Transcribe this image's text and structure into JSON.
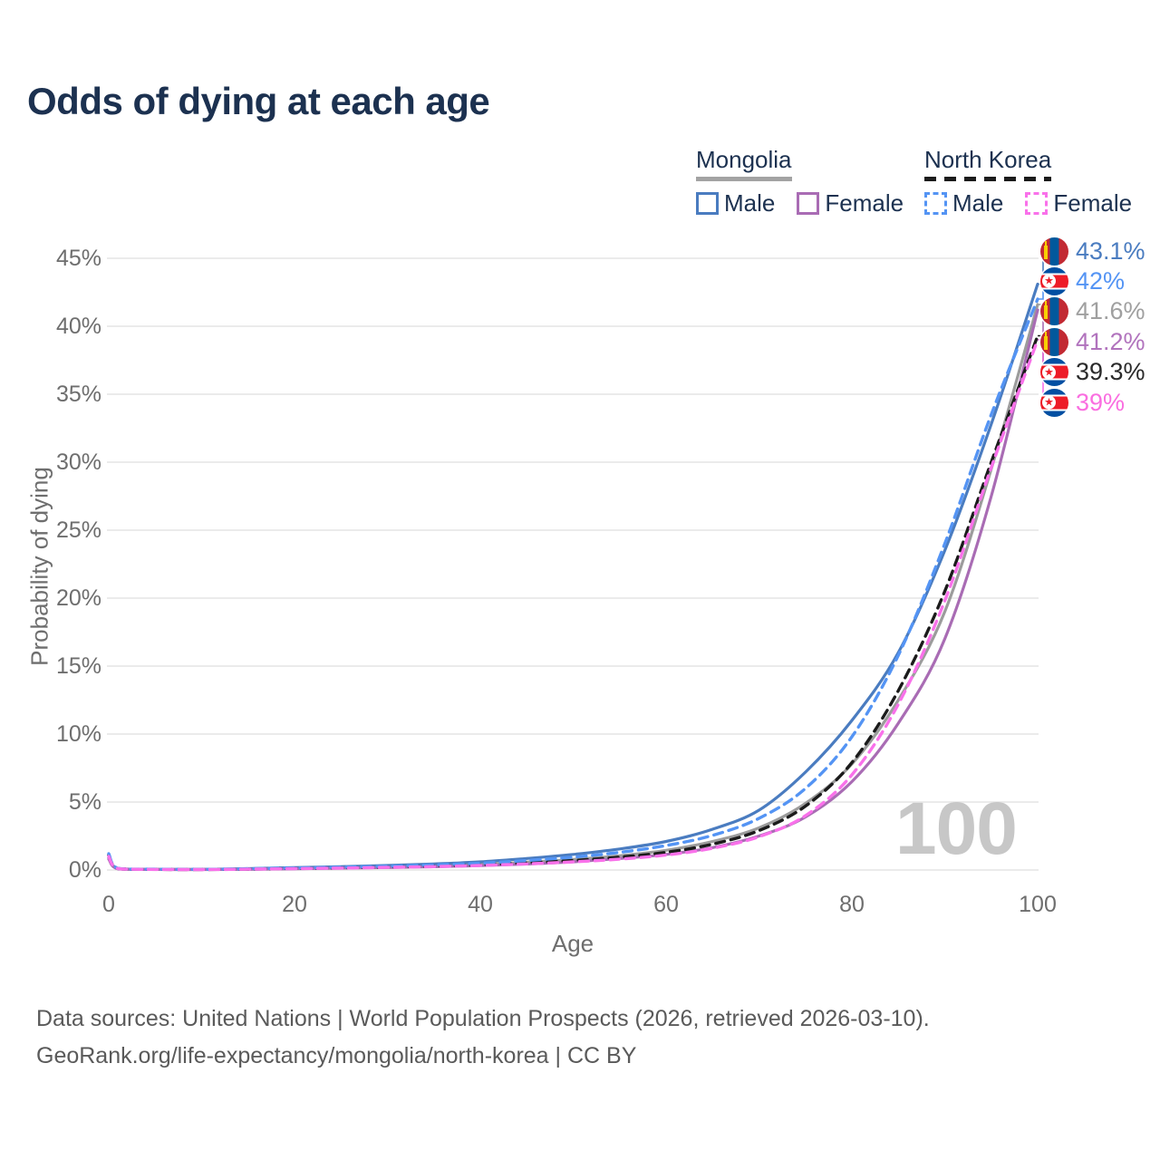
{
  "title": "Odds of dying at each age",
  "watermark": "100",
  "legend": {
    "groups": [
      {
        "name": "Mongolia",
        "line": {
          "style": "solid",
          "color": "#a3a3a3"
        },
        "items": [
          {
            "label": "Male",
            "color": "#4a7cc0",
            "dashed": false
          },
          {
            "label": "Female",
            "color": "#a96cb4",
            "dashed": false
          }
        ]
      },
      {
        "name": "North Korea",
        "line": {
          "style": "dashed",
          "color": "#1b1b1b"
        },
        "items": [
          {
            "label": "Male",
            "color": "#5494f4",
            "dashed": true
          },
          {
            "label": "Female",
            "color": "#f971ea",
            "dashed": true
          }
        ]
      }
    ]
  },
  "end_labels": [
    {
      "text": "43.1%",
      "color": "#4a7cc0",
      "flag": "mn",
      "series": "mn_male"
    },
    {
      "text": "42%",
      "color": "#5494f4",
      "flag": "kp",
      "series": "kp_male"
    },
    {
      "text": "41.6%",
      "color": "#a0a0a0",
      "flag": "mn",
      "series": "mn_total"
    },
    {
      "text": "41.2%",
      "color": "#b173bd",
      "flag": "mn",
      "series": "mn_female"
    },
    {
      "text": "39.3%",
      "color": "#2a2a2a",
      "flag": "kp",
      "series": "kp_total"
    },
    {
      "text": "39%",
      "color": "#fa6ee0",
      "flag": "kp",
      "series": "kp_female"
    }
  ],
  "footer": {
    "line1": "Data sources: United Nations | World Population Prospects (2026, retrieved 2026-03-10).",
    "line2": "GeoRank.org/life-expectancy/mongolia/north-korea | CC BY"
  },
  "chart_data": {
    "type": "line",
    "title": "Odds of dying at each age",
    "xlabel": "Age",
    "ylabel": "Probability of dying",
    "xlim": [
      0,
      100
    ],
    "ylim_pct": [
      0,
      45
    ],
    "grid": "horizontal-only",
    "legend_position": "top-right",
    "x_ticks": [
      0,
      20,
      40,
      60,
      80,
      100
    ],
    "x_tick_labels": [
      "0",
      "20",
      "40",
      "60",
      "80",
      "100"
    ],
    "y_ticks_pct": [
      0,
      5,
      10,
      15,
      20,
      25,
      30,
      35,
      40,
      45
    ],
    "y_tick_labels": [
      "0%",
      "5%",
      "10%",
      "15%",
      "20%",
      "25%",
      "30%",
      "35%",
      "40%",
      "45%"
    ],
    "ages": [
      0,
      1,
      5,
      10,
      15,
      20,
      25,
      30,
      35,
      40,
      45,
      50,
      55,
      60,
      65,
      70,
      75,
      80,
      85,
      90,
      95,
      100
    ],
    "series": [
      {
        "id": "mn_total",
        "name": "Mongolia (both sexes)",
        "color": "#9c9c9c",
        "dashed": false,
        "end_value_pct": 41.6,
        "values_pct": [
          0.9,
          0.09,
          0.04,
          0.04,
          0.07,
          0.13,
          0.18,
          0.24,
          0.32,
          0.42,
          0.58,
          0.78,
          1.05,
          1.45,
          2.1,
          3.1,
          4.9,
          7.8,
          12.5,
          19.0,
          29.5,
          41.6
        ]
      },
      {
        "id": "mn_male",
        "name": "Mongolia Male",
        "color": "#4a7cc0",
        "dashed": false,
        "end_value_pct": 43.1,
        "values_pct": [
          1.0,
          0.1,
          0.05,
          0.05,
          0.1,
          0.18,
          0.25,
          0.33,
          0.45,
          0.6,
          0.85,
          1.15,
          1.55,
          2.1,
          3.0,
          4.4,
          7.2,
          11.0,
          16.0,
          23.5,
          32.8,
          43.1
        ]
      },
      {
        "id": "mn_female",
        "name": "Mongolia Female",
        "color": "#a96cb4",
        "dashed": false,
        "end_value_pct": 41.2,
        "values_pct": [
          0.8,
          0.08,
          0.04,
          0.03,
          0.05,
          0.09,
          0.13,
          0.18,
          0.24,
          0.32,
          0.44,
          0.6,
          0.85,
          1.15,
          1.65,
          2.5,
          3.9,
          6.5,
          10.8,
          17.0,
          27.5,
          41.2
        ]
      },
      {
        "id": "kp_total",
        "name": "North Korea (both sexes)",
        "color": "#1b1b1b",
        "dashed": true,
        "end_value_pct": 39.3,
        "values_pct": [
          1.1,
          0.11,
          0.05,
          0.04,
          0.07,
          0.12,
          0.16,
          0.22,
          0.29,
          0.38,
          0.52,
          0.7,
          0.95,
          1.3,
          1.9,
          2.9,
          4.7,
          7.9,
          13.2,
          20.5,
          30.0,
          39.3
        ]
      },
      {
        "id": "kp_male",
        "name": "North Korea Male",
        "color": "#5494f4",
        "dashed": true,
        "end_value_pct": 42.0,
        "values_pct": [
          1.2,
          0.12,
          0.06,
          0.05,
          0.09,
          0.15,
          0.21,
          0.28,
          0.38,
          0.5,
          0.7,
          0.95,
          1.3,
          1.8,
          2.55,
          3.8,
          6.0,
          9.8,
          15.8,
          24.0,
          33.5,
          42.0
        ]
      },
      {
        "id": "kp_female",
        "name": "North Korea Female",
        "color": "#f971ea",
        "dashed": true,
        "end_value_pct": 39.0,
        "values_pct": [
          1.0,
          0.1,
          0.04,
          0.03,
          0.06,
          0.1,
          0.14,
          0.19,
          0.25,
          0.33,
          0.45,
          0.6,
          0.8,
          1.1,
          1.6,
          2.45,
          4.0,
          7.0,
          12.2,
          19.8,
          29.6,
          39.0
        ]
      }
    ]
  }
}
